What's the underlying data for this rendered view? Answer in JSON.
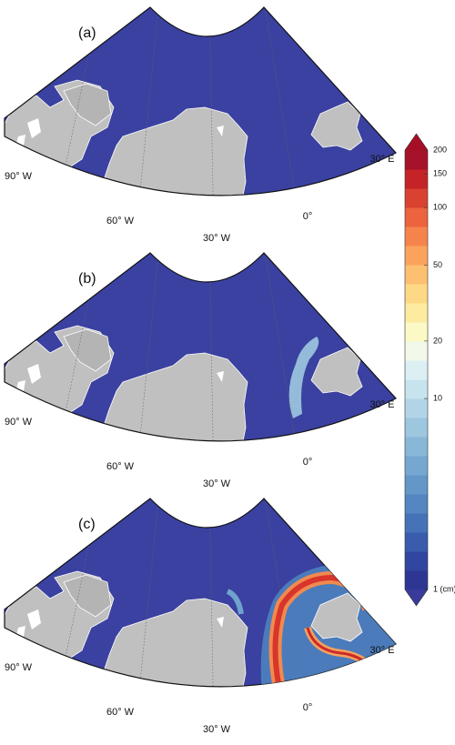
{
  "panels": [
    {
      "label": "(a)",
      "lon_labels": [
        "90° W",
        "60° W",
        "30° W",
        "0°",
        "30° E"
      ]
    },
    {
      "label": "(b)",
      "lon_labels": [
        "90° W",
        "60° W",
        "30° W",
        "0°",
        "30° E"
      ]
    },
    {
      "label": "(c)",
      "lon_labels": [
        "90° W",
        "60° W",
        "30° W",
        "0°",
        "30° E"
      ]
    }
  ],
  "colorbar": {
    "log": true,
    "lim": [
      1,
      200
    ],
    "ticks": [
      {
        "value": 1,
        "label": "1 (cm)"
      },
      10,
      20,
      50,
      100,
      150,
      200
    ],
    "colors": [
      "#2d3793",
      "#3146a0",
      "#395cad",
      "#4672b8",
      "#5486c1",
      "#6397c8",
      "#75a7d0",
      "#89b7d8",
      "#9dc6df",
      "#b1d5e7",
      "#c6e3ee",
      "#dcf0f3",
      "#f2f9e8",
      "#fbf9c6",
      "#fdeca0",
      "#fdd985",
      "#fdc070",
      "#fba35d",
      "#f6834c",
      "#ec633d",
      "#d94230",
      "#c42427",
      "#a5122a"
    ],
    "under_color": "#3a3a9a",
    "over_color": "#a50f26"
  }
}
